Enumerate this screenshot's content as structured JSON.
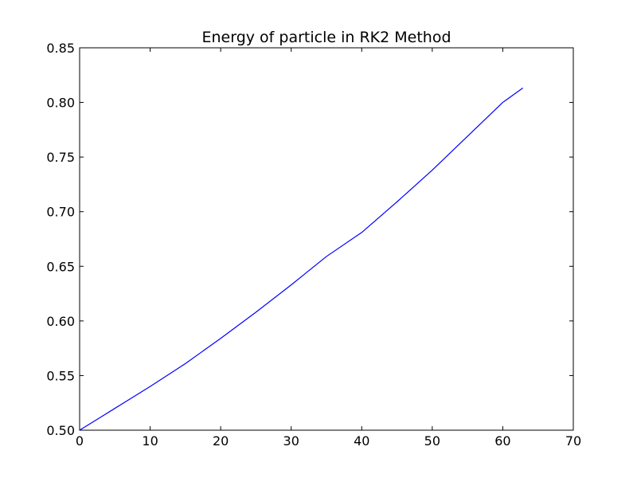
{
  "chart_data": {
    "type": "line",
    "title": "Energy of particle in RK2 Method",
    "xlabel": "",
    "ylabel": "",
    "xlim": [
      0,
      70
    ],
    "ylim": [
      0.5,
      0.85
    ],
    "x_ticks": [
      0,
      10,
      20,
      30,
      40,
      50,
      60,
      70
    ],
    "y_ticks": [
      0.5,
      0.55,
      0.6,
      0.65,
      0.7,
      0.75,
      0.8,
      0.85
    ],
    "x_tick_labels": [
      "0",
      "10",
      "20",
      "30",
      "40",
      "50",
      "60",
      "70"
    ],
    "y_tick_labels": [
      "0.50",
      "0.55",
      "0.60",
      "0.65",
      "0.70",
      "0.75",
      "0.80",
      "0.85"
    ],
    "grid": false,
    "legend": "none",
    "series": [
      {
        "color": "#0000ff",
        "x": [
          0,
          5,
          10,
          15,
          20,
          25,
          30,
          35,
          40,
          45,
          50,
          55,
          60,
          62.8
        ],
        "y": [
          0.5,
          0.52,
          0.54,
          0.561,
          0.584,
          0.608,
          0.633,
          0.659,
          0.681,
          0.709,
          0.738,
          0.769,
          0.8,
          0.813
        ]
      }
    ]
  }
}
